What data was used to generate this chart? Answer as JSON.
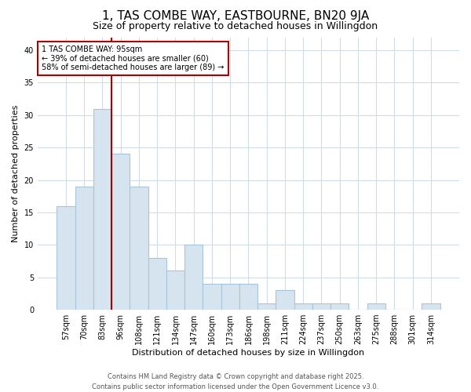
{
  "title": "1, TAS COMBE WAY, EASTBOURNE, BN20 9JA",
  "subtitle": "Size of property relative to detached houses in Willingdon",
  "xlabel": "Distribution of detached houses by size in Willingdon",
  "ylabel": "Number of detached properties",
  "categories": [
    "57sqm",
    "70sqm",
    "83sqm",
    "96sqm",
    "108sqm",
    "121sqm",
    "134sqm",
    "147sqm",
    "160sqm",
    "173sqm",
    "186sqm",
    "198sqm",
    "211sqm",
    "224sqm",
    "237sqm",
    "250sqm",
    "263sqm",
    "275sqm",
    "288sqm",
    "301sqm",
    "314sqm"
  ],
  "values": [
    16,
    19,
    31,
    24,
    19,
    8,
    6,
    10,
    4,
    4,
    4,
    1,
    3,
    1,
    1,
    1,
    0,
    1,
    0,
    0,
    1
  ],
  "bar_color": "#d6e4f0",
  "bar_edgecolor": "#a8c4d8",
  "vline_x": 3,
  "vline_color": "#aa0000",
  "annotation_text": "1 TAS COMBE WAY: 95sqm\n← 39% of detached houses are smaller (60)\n58% of semi-detached houses are larger (89) →",
  "annotation_box_color": "#ffffff",
  "annotation_box_edgecolor": "#aa0000",
  "ylim": [
    0,
    42
  ],
  "yticks": [
    0,
    5,
    10,
    15,
    20,
    25,
    30,
    35,
    40
  ],
  "footer_line1": "Contains HM Land Registry data © Crown copyright and database right 2025.",
  "footer_line2": "Contains public sector information licensed under the Open Government Licence v3.0.",
  "background_color": "#ffffff",
  "plot_background": "#ffffff",
  "grid_color": "#d0dce8",
  "title_fontsize": 11,
  "subtitle_fontsize": 9,
  "tick_fontsize": 7,
  "axis_label_fontsize": 8,
  "footer_fontsize": 6
}
